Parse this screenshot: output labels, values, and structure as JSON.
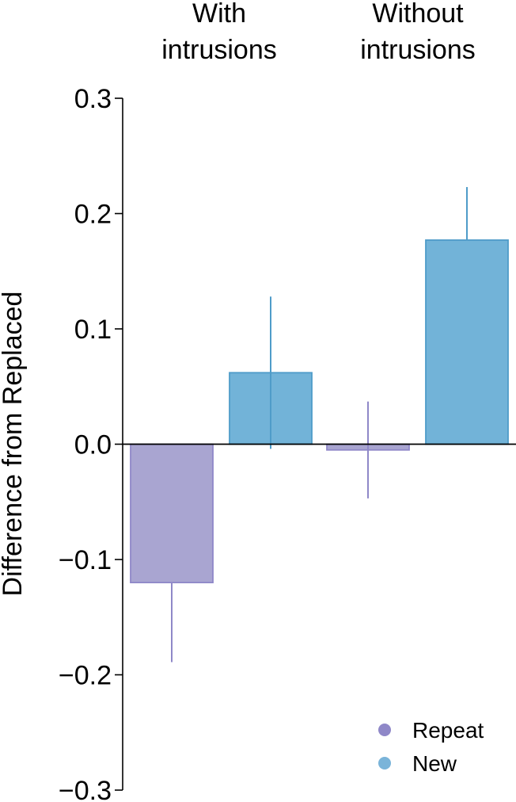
{
  "chart_data": {
    "type": "bar",
    "groups": [
      {
        "label_lines": [
          "With",
          "intrusions"
        ]
      },
      {
        "label_lines": [
          "Without",
          "intrusions"
        ]
      }
    ],
    "ylabel": "Difference from Replaced",
    "ylim": [
      -0.3,
      0.3
    ],
    "yticks": [
      -0.3,
      -0.2,
      -0.1,
      0.0,
      0.1,
      0.2,
      0.3
    ],
    "ytick_labels": [
      "−0.3",
      "−0.2",
      "−0.1",
      "0.0",
      "0.1",
      "0.2",
      "0.3"
    ],
    "series": [
      {
        "name": "Repeat",
        "color": "#a9a5d1",
        "edge_color": "#8f88c8",
        "legend_color": "#8f88c8",
        "values": [
          -0.12,
          -0.005
        ],
        "error_upper": [
          -0.12,
          0.037
        ],
        "error_lower": [
          -0.189,
          -0.047
        ]
      },
      {
        "name": "New",
        "color": "#72b3d8",
        "edge_color": "#4f9cc9",
        "legend_color": "#7ab4d9",
        "values": [
          0.062,
          0.177
        ],
        "error_upper": [
          0.128,
          0.223
        ],
        "error_lower": [
          -0.004,
          0.177
        ]
      }
    ],
    "zero_line": true,
    "grid": false,
    "legend_position": "bottom-right"
  }
}
